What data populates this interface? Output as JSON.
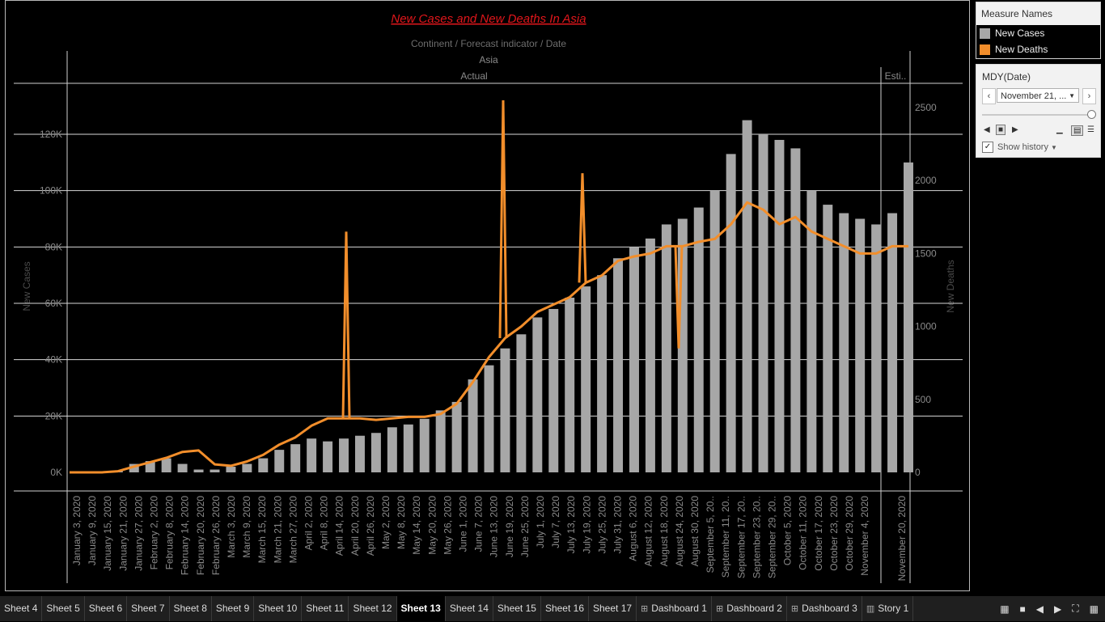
{
  "chart": {
    "title": "New Cases and New Deaths  In Asia",
    "column_path": "Continent / Forecast indicator / Date",
    "continent": "Asia",
    "panes": [
      "Actual",
      "Esti.."
    ],
    "left_axis_title": "New Cases",
    "right_axis_title": "New Deaths",
    "left_ticks": [
      "0K",
      "20K",
      "40K",
      "60K",
      "80K",
      "100K",
      "120K"
    ],
    "right_ticks": [
      "0",
      "500",
      "1000",
      "1500",
      "2000",
      "2500"
    ]
  },
  "chart_data": {
    "type": "bar",
    "title": "New Cases and New Deaths  In Asia",
    "x_label": "Continent / Forecast indicator / Date",
    "left_axis": {
      "label": "New Cases",
      "range": [
        0,
        130000
      ]
    },
    "right_axis": {
      "label": "New Deaths",
      "range": [
        0,
        2600
      ]
    },
    "x_tick_labels": [
      "January 3, 2020",
      "January 9, 2020",
      "January 15, 2020",
      "January 21, 2020",
      "January 27, 2020",
      "February 2, 2020",
      "February 8, 2020",
      "February 14, 2020",
      "February 20, 2020",
      "February 26, 2020",
      "March 3, 2020",
      "March 9, 2020",
      "March 15, 2020",
      "March 21, 2020",
      "March 27, 2020",
      "April 2, 2020",
      "April 8, 2020",
      "April 14, 2020",
      "April 20, 2020",
      "April 26, 2020",
      "May 2, 2020",
      "May 8, 2020",
      "May 14, 2020",
      "May 20, 2020",
      "May 26, 2020",
      "June 1, 2020",
      "June 7, 2020",
      "June 13, 2020",
      "June 19, 2020",
      "June 25, 2020",
      "July 1, 2020",
      "July 7, 2020",
      "July 13, 2020",
      "July 19, 2020",
      "July 25, 2020",
      "July 31, 2020",
      "August 6, 2020",
      "August 12, 2020",
      "August 18, 2020",
      "August 24, 2020",
      "August 30, 2020",
      "September 5, 20..",
      "September 11, 20..",
      "September 17, 20..",
      "September 23, 20..",
      "September 29, 20..",
      "October 5, 2020",
      "October 11, 2020",
      "October 17, 2020",
      "October 23, 2020",
      "October 29, 2020",
      "November 4, 2020",
      "November 20, 2020"
    ],
    "series": [
      {
        "name": "New Cases",
        "color": "#a7a7a7",
        "values": [
          0,
          0,
          0,
          500,
          3000,
          4000,
          5000,
          3000,
          1000,
          1000,
          2000,
          3000,
          5000,
          8000,
          10000,
          12000,
          11000,
          12000,
          13000,
          14000,
          16000,
          17000,
          19000,
          22000,
          25000,
          33000,
          38000,
          44000,
          49000,
          55000,
          58000,
          62000,
          66000,
          70000,
          76000,
          80000,
          83000,
          88000,
          90000,
          94000,
          100000,
          113000,
          125000,
          120000,
          118000,
          115000,
          100000,
          95000,
          92000,
          90000,
          88000,
          92000,
          110000
        ]
      },
      {
        "name": "New Deaths",
        "color": "#f28e2b",
        "values": [
          0,
          0,
          0,
          8,
          40,
          70,
          100,
          140,
          150,
          55,
          45,
          75,
          120,
          190,
          240,
          320,
          370,
          370,
          370,
          360,
          370,
          380,
          380,
          400,
          470,
          620,
          790,
          920,
          1000,
          1100,
          1150,
          1200,
          1300,
          1350,
          1450,
          1480,
          1500,
          1550,
          1550,
          1580,
          1600,
          1700,
          1850,
          1800,
          1700,
          1750,
          1650,
          1600,
          1550,
          1500,
          1500,
          1550,
          1550
        ]
      }
    ],
    "annotations": [
      {
        "series": "New Deaths",
        "date": "April 17, 2020",
        "value": 1650
      },
      {
        "series": "New Deaths",
        "date": "June 17, 2020",
        "value": 2550
      },
      {
        "series": "New Deaths",
        "date": "July 16, 2020",
        "value": 2050
      },
      {
        "series": "New Deaths",
        "date": "August 25, 2020",
        "value": 850
      }
    ],
    "gridlines": true
  },
  "legend": {
    "title": "Measure Names",
    "items": [
      {
        "label": "New Cases",
        "color": "#a7a7a7"
      },
      {
        "label": "New Deaths",
        "color": "#f28e2b"
      }
    ]
  },
  "filter": {
    "title": "MDY(Date)",
    "selected": "November 21, ...",
    "show_history": "Show history",
    "checked": "✓"
  },
  "tabs": [
    {
      "label": "Sheet 4",
      "icon": ""
    },
    {
      "label": "Sheet 5",
      "icon": ""
    },
    {
      "label": "Sheet 6",
      "icon": ""
    },
    {
      "label": "Sheet 7",
      "icon": ""
    },
    {
      "label": "Sheet 8",
      "icon": ""
    },
    {
      "label": "Sheet 9",
      "icon": ""
    },
    {
      "label": "Sheet 10",
      "icon": ""
    },
    {
      "label": "Sheet 11",
      "icon": ""
    },
    {
      "label": "Sheet 12",
      "icon": ""
    },
    {
      "label": "Sheet 13",
      "icon": "",
      "active": true
    },
    {
      "label": "Sheet 14",
      "icon": ""
    },
    {
      "label": "Sheet 15",
      "icon": ""
    },
    {
      "label": "Sheet 16",
      "icon": ""
    },
    {
      "label": "Sheet 17",
      "icon": ""
    },
    {
      "label": "Dashboard 1",
      "icon": "dashboard-icon"
    },
    {
      "label": "Dashboard 2",
      "icon": "dashboard-icon"
    },
    {
      "label": "Dashboard 3",
      "icon": "dashboard-icon"
    },
    {
      "label": "Story 1",
      "icon": "story-icon"
    }
  ]
}
